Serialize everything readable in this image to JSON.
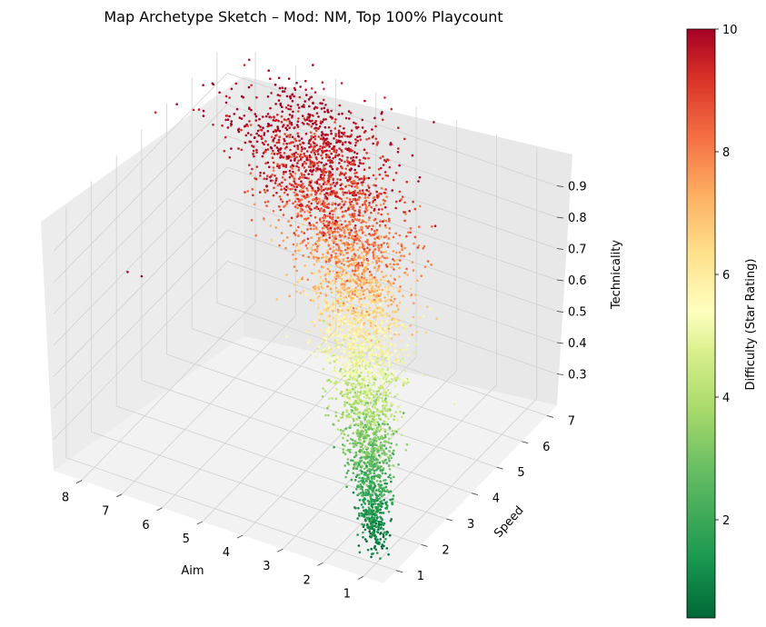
{
  "chart_data": {
    "type": "scatter",
    "projection": "3d",
    "title": "Map Archetype Sketch – Mod: NM, Top 100% Playcount",
    "xlabel": "Aim",
    "ylabel": "Speed",
    "zlabel": "Technicality",
    "colorbar_label": "Difficulty (Star Rating)",
    "xlim": [
      0.5,
      8.7
    ],
    "ylim": [
      0.5,
      7.4
    ],
    "zlim": [
      0.2,
      1.0
    ],
    "clim": [
      0.4,
      10
    ],
    "colormap": "RdYlGn_r",
    "x_ticks": [
      "1",
      "2",
      "3",
      "4",
      "5",
      "6",
      "7",
      "8"
    ],
    "y_ticks": [
      "1",
      "2",
      "3",
      "4",
      "5",
      "6",
      "7"
    ],
    "z_ticks": [
      "0.3",
      "0.4",
      "0.5",
      "0.6",
      "0.7",
      "0.8",
      "0.9"
    ],
    "colorbar_ticks": [
      "2",
      "4",
      "6",
      "8",
      "10"
    ],
    "grid": true,
    "point_count_description": "dense cloud: difficulty rises with aim, speed and technicality",
    "trend": [
      {
        "aim": 1.0,
        "speed": 1.0,
        "technicality": 0.25,
        "difficulty": 0.5
      },
      {
        "aim": 1.6,
        "speed": 1.8,
        "technicality": 0.36,
        "difficulty": 2.0
      },
      {
        "aim": 2.2,
        "speed": 2.6,
        "technicality": 0.46,
        "difficulty": 3.5
      },
      {
        "aim": 2.8,
        "speed": 3.4,
        "technicality": 0.56,
        "difficulty": 5.0
      },
      {
        "aim": 3.4,
        "speed": 4.2,
        "technicality": 0.66,
        "difficulty": 6.5
      },
      {
        "aim": 4.2,
        "speed": 5.0,
        "technicality": 0.76,
        "difficulty": 8.0
      },
      {
        "aim": 5.2,
        "speed": 5.8,
        "technicality": 0.85,
        "difficulty": 9.3
      },
      {
        "aim": 6.5,
        "speed": 6.6,
        "technicality": 0.93,
        "difficulty": 10.0
      }
    ],
    "outliers": [
      {
        "aim": 8.5,
        "speed": 6.5,
        "technicality": 0.95,
        "difficulty": 10
      },
      {
        "aim": 7.8,
        "speed": 2.0,
        "technicality": 0.75,
        "difficulty": 10
      },
      {
        "aim": 8.2,
        "speed": 3.2,
        "technicality": 0.62,
        "difficulty": 10
      },
      {
        "aim": 3.5,
        "speed": 7.3,
        "technicality": 0.98,
        "difficulty": 10
      },
      {
        "aim": 7.2,
        "speed": 5.5,
        "technicality": 0.98,
        "difficulty": 10
      }
    ]
  }
}
